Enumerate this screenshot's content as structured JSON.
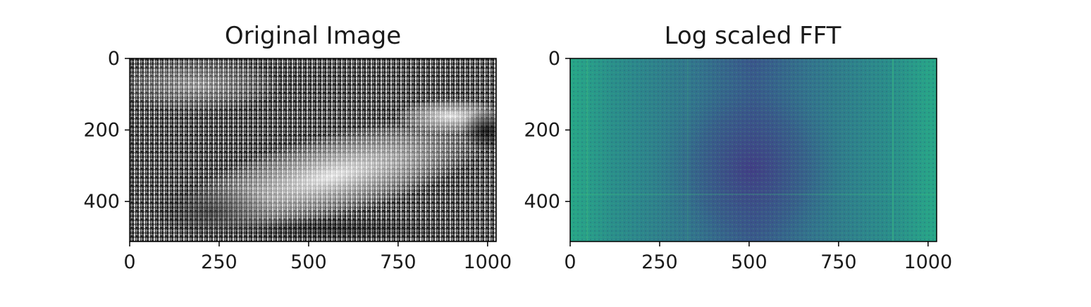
{
  "chart_data": [
    {
      "type": "heatmap",
      "title": "Original Image",
      "colormap": "gray",
      "xlim": [
        0,
        1024
      ],
      "ylim": [
        512,
        0
      ],
      "xticks": [
        0,
        250,
        500,
        750,
        1000
      ],
      "yticks": [
        0,
        200,
        400
      ],
      "xtick_labels": [
        "0",
        "250",
        "500",
        "750",
        "1000"
      ],
      "ytick_labels": [
        "0",
        "200",
        "400"
      ],
      "grid": false
    },
    {
      "type": "heatmap",
      "title": "Log scaled FFT",
      "colormap": "viridis",
      "xlim": [
        0,
        1024
      ],
      "ylim": [
        512,
        0
      ],
      "xticks": [
        0,
        250,
        500,
        750,
        1000
      ],
      "yticks": [
        0,
        200,
        400
      ],
      "xtick_labels": [
        "0",
        "250",
        "500",
        "750",
        "1000"
      ],
      "ytick_labels": [
        "0",
        "200",
        "400"
      ],
      "grid": false
    }
  ]
}
